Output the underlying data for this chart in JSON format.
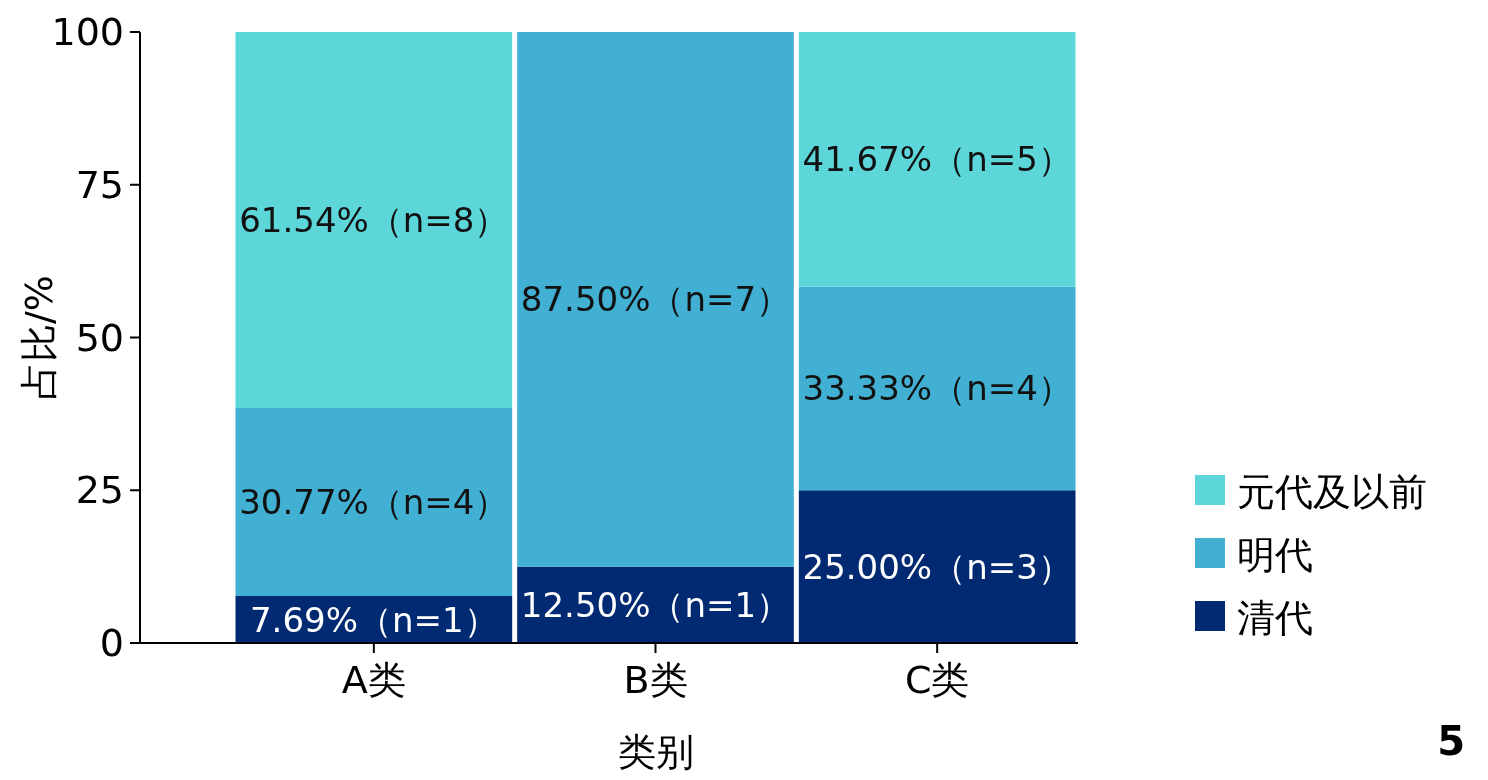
{
  "chart_data": {
    "type": "bar",
    "stacked": true,
    "xlabel": "类别",
    "ylabel": "占比/%",
    "categories": [
      "A类",
      "B类",
      "C类"
    ],
    "ylim": [
      0,
      100
    ],
    "yticks": [
      0,
      25,
      50,
      75,
      100
    ],
    "grid": false,
    "legend": "bottom right",
    "series": [
      {
        "name": "清代",
        "color": "#022a72",
        "values": [
          7.69,
          12.5,
          25.0
        ],
        "value_labels": [
          "7.69%（n=1）",
          "12.50%（n=1）",
          "25.00%（n=3）"
        ]
      },
      {
        "name": "明代",
        "color": "#42b0d2",
        "values": [
          30.77,
          87.5,
          33.33
        ],
        "value_labels": [
          "30.77%（n=4）",
          "87.50%（n=7）",
          "33.33%（n=4）"
        ]
      },
      {
        "name": "元代及以前",
        "color": "#5dd6d9",
        "values": [
          61.54,
          null,
          41.67
        ],
        "value_labels": [
          "61.54%（n=8）",
          null,
          "41.67%（n=5）"
        ]
      }
    ],
    "annotations": [
      "5"
    ]
  }
}
